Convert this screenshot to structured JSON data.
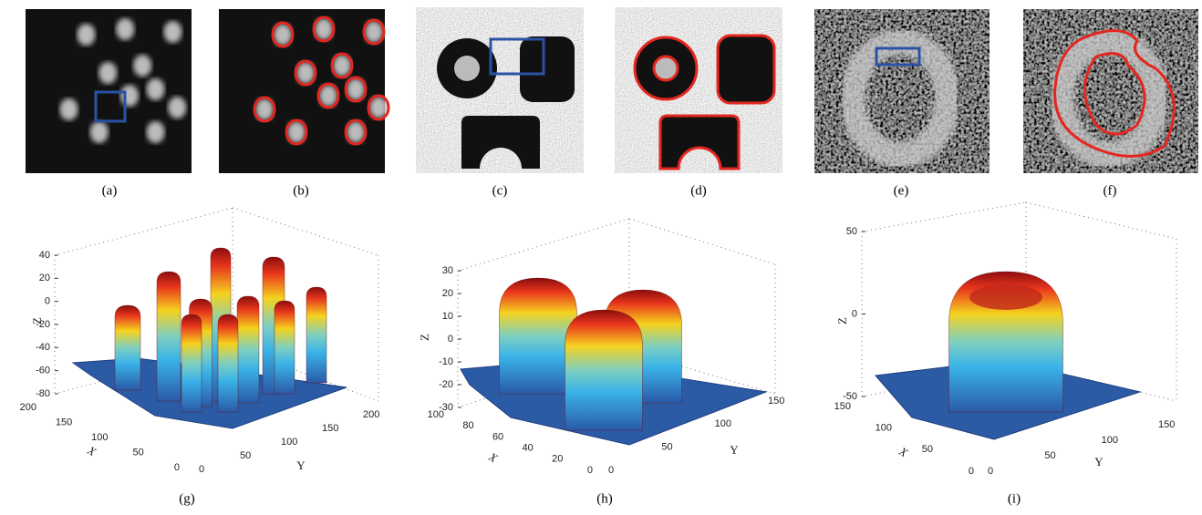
{
  "panel_labels": [
    "(a)",
    "(b)",
    "(c)",
    "(d)",
    "(e)",
    "(f)",
    "(g)",
    "(h)",
    "(i)"
  ],
  "plots": [
    {
      "z_label": "Z",
      "x_label": "X",
      "y_label": "Y",
      "z_ticks": [
        40,
        20,
        0,
        -20,
        -40,
        -60,
        -80
      ],
      "x_ticks": [
        200,
        150,
        100,
        50,
        0
      ],
      "y_ticks": [
        0,
        50,
        100,
        150,
        200
      ]
    },
    {
      "z_label": "Z",
      "x_label": "X",
      "y_label": "Y",
      "z_ticks": [
        30,
        20,
        10,
        0,
        -10,
        -20,
        -30
      ],
      "x_ticks": [
        100,
        80,
        60,
        40,
        20,
        0
      ],
      "y_ticks": [
        0,
        50,
        100,
        150
      ]
    },
    {
      "z_label": "Z",
      "x_label": "X",
      "y_label": "Y",
      "z_ticks": [
        50,
        0,
        -50
      ],
      "x_ticks": [
        150,
        100,
        50,
        0
      ],
      "y_ticks": [
        0,
        50,
        100,
        150
      ]
    }
  ]
}
